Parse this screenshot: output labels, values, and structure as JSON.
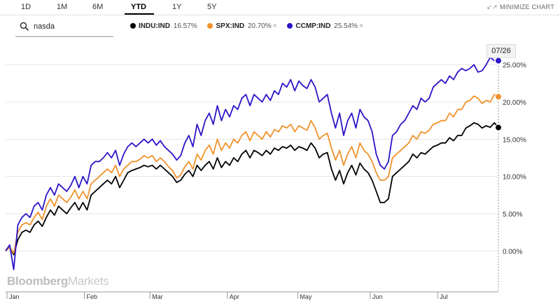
{
  "range_tabs": [
    {
      "label": "1D",
      "active": false
    },
    {
      "label": "1M",
      "active": false
    },
    {
      "label": "6M",
      "active": false
    },
    {
      "label": "YTD",
      "active": true
    },
    {
      "label": "1Y",
      "active": false
    },
    {
      "label": "5Y",
      "active": false
    }
  ],
  "minimize_label": "MINIMIZE CHART",
  "search": {
    "value": "nasda",
    "icon": "search-icon"
  },
  "legend": [
    {
      "symbol": "INDU:IND",
      "change": "16.57%",
      "color": "#000000",
      "removable": false
    },
    {
      "symbol": "SPX:IND",
      "change": "20.70%",
      "color": "#f0922b",
      "removable": true
    },
    {
      "symbol": "CCMP:IND",
      "change": "25.54%",
      "color": "#2b14c8",
      "removable": true
    }
  ],
  "remove_glyph": "×",
  "brand": {
    "bold": "Bloomberg",
    "light": "Markets"
  },
  "current_date": "07/26",
  "chart_data": {
    "type": "line",
    "x_label_months": [
      "Jan",
      "Feb",
      "Mar",
      "Apr",
      "May",
      "Jun",
      "Jul"
    ],
    "y_ticks": [
      "0.00%",
      "5.00%",
      "10.00%",
      "15.00%",
      "20.00%",
      "25.00%"
    ],
    "ylim": [
      -5.5,
      27.5
    ],
    "grid": true,
    "series": [
      {
        "name": "INDU:IND",
        "color": "#000000",
        "values": [
          0,
          0.5,
          -0.5,
          1.5,
          2.5,
          2.8,
          2.5,
          3.5,
          4.0,
          3.3,
          4.5,
          5.5,
          4.8,
          6,
          5.5,
          5,
          5.8,
          6.5,
          5.5,
          6.5,
          5.5,
          7.5,
          8,
          8.5,
          9,
          9.5,
          9,
          10,
          8.5,
          9.5,
          10.5,
          10.8,
          11,
          11.2,
          11.5,
          11.3,
          11.5,
          11,
          11.5,
          11,
          10.5,
          10,
          9.2,
          9.5,
          10.3,
          10.8,
          10,
          11.5,
          10.8,
          11.5,
          12,
          11,
          12.5,
          11.2,
          12,
          11.5,
          12.5,
          12,
          13,
          13.5,
          12.5,
          13.5,
          13.2,
          12.8,
          13.5,
          13,
          13.8,
          13.5,
          14,
          13.8,
          14.2,
          13.5,
          14,
          13.8,
          13.5,
          14.5,
          13.8,
          12.5,
          13,
          13.2,
          11,
          9.5,
          10.8,
          9,
          10.5,
          11.5,
          10.2,
          11.8,
          11,
          10.5,
          9.5,
          8,
          6.5,
          6.5,
          7,
          10,
          10.5,
          11,
          11.5,
          12,
          13,
          12.5,
          13.2,
          13,
          13.5,
          14,
          14.2,
          14.5,
          14.5,
          15.2,
          14.8,
          15.5,
          15.5,
          16.5,
          16.8,
          17.2,
          17,
          16.5,
          16.8,
          16.6,
          17.2,
          16.57
        ]
      },
      {
        "name": "SPX:IND",
        "color": "#f0922b",
        "values": [
          0,
          0.5,
          -0.3,
          2.5,
          3.5,
          3.8,
          3.5,
          4.5,
          5.2,
          4.2,
          6,
          7,
          6,
          7.5,
          7,
          6.5,
          7.2,
          8.2,
          7,
          8,
          7,
          9,
          9.5,
          10,
          10.5,
          11,
          10.5,
          11.5,
          10,
          11,
          11.5,
          12,
          12,
          12.3,
          12.8,
          12.5,
          12.8,
          12,
          12.5,
          12,
          11.3,
          10.8,
          9.8,
          10.2,
          11.3,
          12,
          11,
          13,
          12.2,
          13.5,
          14.2,
          13,
          15,
          13.5,
          14.5,
          13.8,
          15,
          14.5,
          15.5,
          16,
          14.8,
          16,
          15.5,
          15,
          16,
          15.3,
          16.3,
          16,
          16.8,
          16.5,
          17,
          16,
          16.8,
          16.5,
          16.2,
          17.5,
          16.5,
          15,
          15.5,
          15.8,
          13.8,
          12.2,
          13.5,
          11.5,
          13,
          14,
          12.5,
          14.5,
          13.5,
          13,
          12,
          10.5,
          9.5,
          9.5,
          10,
          12.5,
          13,
          13.5,
          14,
          14.5,
          15.5,
          15,
          16,
          15.8,
          16.2,
          17,
          17.2,
          17.5,
          17.5,
          18.5,
          18,
          19,
          19,
          20,
          20.2,
          20.8,
          20.5,
          19.8,
          20.2,
          20,
          21,
          20.7
        ]
      },
      {
        "name": "CCMP:IND",
        "color": "#2b14c8",
        "values": [
          0,
          0.8,
          -2.5,
          3.5,
          4.5,
          5,
          4.5,
          6,
          6.5,
          5.5,
          7.5,
          8.5,
          7.5,
          9,
          8.5,
          8,
          8.8,
          10,
          8.5,
          10,
          9,
          11.5,
          12,
          12,
          12.5,
          13.2,
          12.5,
          13.5,
          11.5,
          13,
          14,
          14.5,
          14,
          14.5,
          15,
          14.5,
          15,
          14.2,
          14.8,
          14,
          13.5,
          13,
          12.2,
          12.8,
          14.5,
          15.5,
          14,
          17,
          15.5,
          17.5,
          18.5,
          17,
          19.5,
          17.5,
          19,
          18,
          19.5,
          19,
          20.5,
          21,
          19.5,
          21,
          20.5,
          20,
          21,
          20.2,
          21.5,
          21,
          22.5,
          22,
          23,
          21.5,
          22.8,
          22.2,
          21.8,
          23,
          22,
          20,
          20.5,
          21,
          18.5,
          16.5,
          18.5,
          15.5,
          17.5,
          18.5,
          16.5,
          19,
          18,
          17.5,
          16,
          13,
          11.5,
          11,
          12,
          15.5,
          16,
          17,
          17.5,
          18.5,
          19.5,
          19,
          20.5,
          20,
          20.5,
          22,
          22.5,
          23,
          22.5,
          23.5,
          23,
          24,
          24.5,
          24.2,
          24.5,
          25,
          24,
          24.2,
          25,
          26,
          25.54
        ]
      }
    ]
  }
}
